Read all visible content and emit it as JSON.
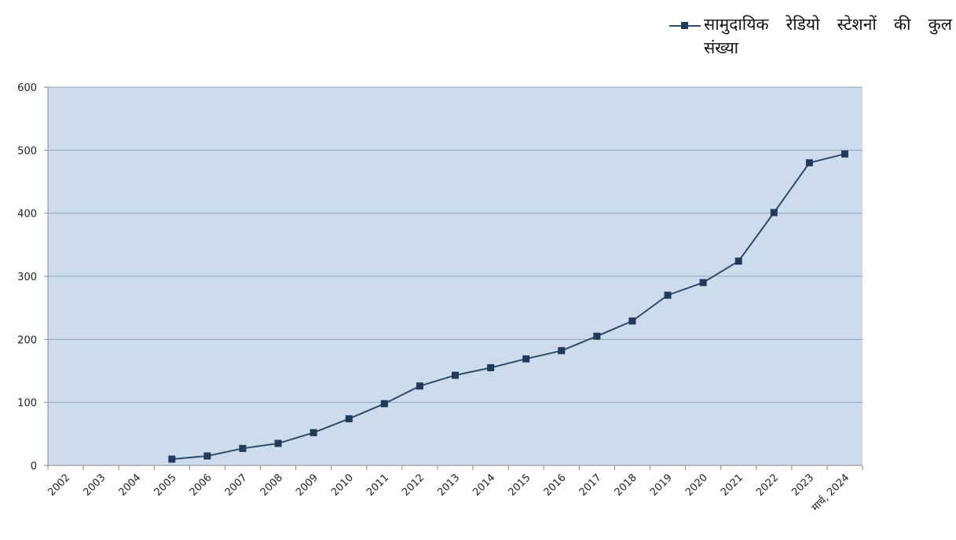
{
  "chart_data": {
    "type": "line",
    "title": "",
    "xlabel": "",
    "ylabel": "",
    "ylim": [
      0,
      600
    ],
    "yticks": [
      0,
      100,
      200,
      300,
      400,
      500,
      600
    ],
    "categories": [
      "2002",
      "2003",
      "2004",
      "2005",
      "2006",
      "2007",
      "2008",
      "2009",
      "2010",
      "2011",
      "2012",
      "2013",
      "2014",
      "2015",
      "2016",
      "2017",
      "2018",
      "2019",
      "2020",
      "2021",
      "2022",
      "2023",
      "मार्च, 2024"
    ],
    "series": [
      {
        "name": "सामुदायिक रेडियो स्टेशनों की कुल संख्या",
        "values": [
          null,
          null,
          null,
          10,
          15,
          27,
          35,
          52,
          74,
          98,
          126,
          143,
          155,
          169,
          182,
          205,
          229,
          270,
          290,
          324,
          401,
          480,
          494
        ]
      }
    ],
    "legend": {
      "position": "top-right",
      "line1": "सामुदायिक रेडियो स्टेशनों की कुल",
      "line2": "संख्या"
    },
    "grid": true,
    "colors": {
      "plot_bg": "#cddcec",
      "grid": "#8fa4bb",
      "line": "#2f4a6b",
      "marker": "#223a5a"
    }
  }
}
